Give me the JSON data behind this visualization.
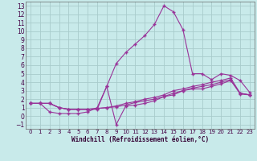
{
  "background_color": "#c8eaea",
  "grid_color": "#a8cccc",
  "line_color": "#993399",
  "xlabel": "Windchill (Refroidissement éolien,°C)",
  "x_ticks": [
    0,
    1,
    2,
    3,
    4,
    5,
    6,
    7,
    8,
    9,
    10,
    11,
    12,
    13,
    14,
    15,
    16,
    17,
    18,
    19,
    20,
    21,
    22,
    23
  ],
  "y_ticks": [
    -1,
    0,
    1,
    2,
    3,
    4,
    5,
    6,
    7,
    8,
    9,
    10,
    11,
    12,
    13
  ],
  "xlim": [
    -0.5,
    23.5
  ],
  "ylim": [
    -1.5,
    13.5
  ],
  "series": [
    [
      1.5,
      1.5,
      1.5,
      1.0,
      0.8,
      0.8,
      0.8,
      0.8,
      3.5,
      6.2,
      7.5,
      8.5,
      9.5,
      10.8,
      13.0,
      12.3,
      10.2,
      5.0,
      5.0,
      4.3,
      5.0,
      4.8,
      4.2,
      2.8
    ],
    [
      1.5,
      1.5,
      0.5,
      0.3,
      0.3,
      0.3,
      0.5,
      1.0,
      3.5,
      -1.0,
      1.2,
      1.3,
      1.5,
      1.8,
      2.3,
      2.5,
      3.0,
      3.2,
      3.2,
      3.5,
      3.8,
      4.2,
      2.7,
      2.5
    ],
    [
      1.5,
      1.5,
      1.5,
      1.0,
      0.8,
      0.8,
      0.8,
      0.9,
      1.0,
      1.1,
      1.3,
      1.6,
      1.8,
      2.0,
      2.3,
      2.7,
      3.0,
      3.3,
      3.5,
      3.7,
      4.0,
      4.3,
      2.6,
      2.5
    ],
    [
      1.5,
      1.5,
      1.5,
      1.0,
      0.8,
      0.8,
      0.8,
      0.9,
      1.0,
      1.2,
      1.5,
      1.7,
      2.0,
      2.2,
      2.5,
      3.0,
      3.2,
      3.5,
      3.7,
      4.0,
      4.2,
      4.5,
      2.7,
      2.5
    ]
  ]
}
